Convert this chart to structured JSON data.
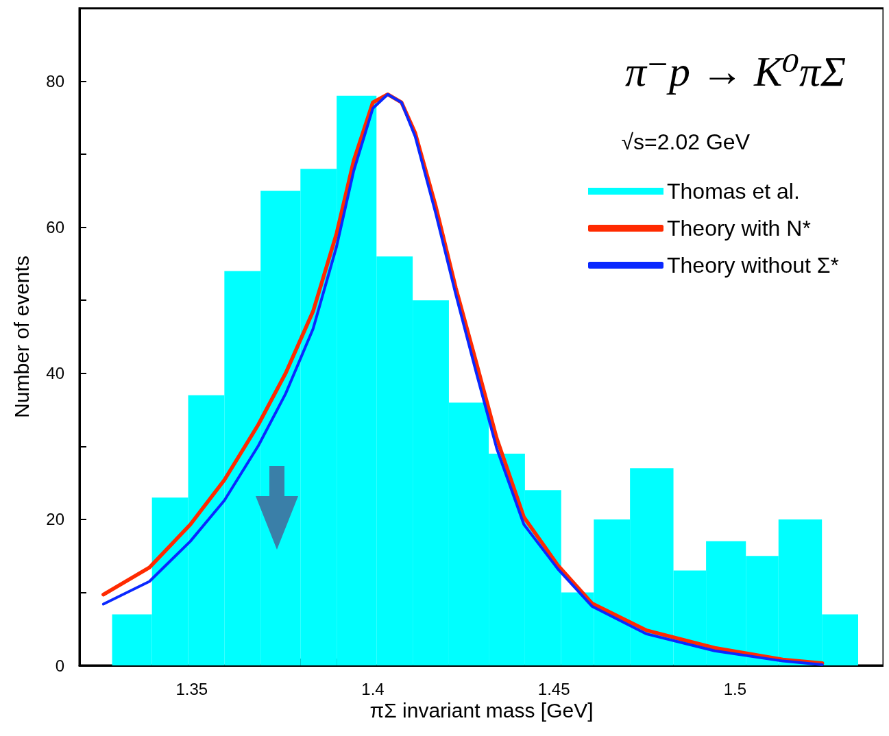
{
  "chart_data": {
    "type": "histogram",
    "title": "π⁻p → K⁰πΣ",
    "subtitle": "√s=2.02 GeV",
    "xlabel": "πΣ invariant mass [GeV]",
    "ylabel": "Number of events",
    "bins": [
      1.328,
      1.339,
      1.349,
      1.359,
      1.369,
      1.38,
      1.39,
      1.401,
      1.411,
      1.421,
      1.432,
      1.442,
      1.452,
      1.461,
      1.471,
      1.483,
      1.492,
      1.503,
      1.512,
      1.524,
      1.534
    ],
    "series": [
      {
        "name": "Thomas et al.",
        "color": "#00ffff",
        "values": [
          7,
          23,
          37,
          54,
          65,
          68,
          78,
          56,
          50,
          36,
          29,
          24,
          10,
          20,
          27,
          13,
          17,
          15,
          20,
          7
        ]
      },
      {
        "name": "Theory with N*",
        "type": "line",
        "color": "#ff2a00",
        "x": [
          1.3256,
          1.3383,
          1.3496,
          1.359,
          1.3684,
          1.3759,
          1.3835,
          1.39,
          1.3947,
          1.4,
          1.4041,
          1.4079,
          1.4117,
          1.4173,
          1.4229,
          1.4286,
          1.4342,
          1.4417,
          1.4511,
          1.4605,
          1.4756,
          1.4944,
          1.5132,
          1.5241
        ],
        "values": [
          9.7,
          13.4,
          19.3,
          25.4,
          33,
          40,
          48.5,
          59.2,
          69.1,
          77.1,
          78.2,
          77.1,
          72.9,
          63,
          51.7,
          41.4,
          31.1,
          20.3,
          13.7,
          8.5,
          4.8,
          2.4,
          0.8,
          0.3
        ]
      },
      {
        "name": "Theory without Σ*",
        "type": "line",
        "color": "#0a28ff",
        "x": [
          1.3256,
          1.3383,
          1.3496,
          1.359,
          1.3684,
          1.3759,
          1.3835,
          1.39,
          1.3947,
          1.4,
          1.4041,
          1.4079,
          1.4117,
          1.4173,
          1.4229,
          1.4286,
          1.4342,
          1.4417,
          1.4511,
          1.4605,
          1.4756,
          1.4944,
          1.5132,
          1.5241
        ],
        "values": [
          8.4,
          11.5,
          17,
          22.6,
          30.1,
          37.2,
          46.1,
          57.4,
          67.7,
          76.3,
          78.2,
          77.1,
          72.4,
          62,
          50.8,
          40,
          29.7,
          19.3,
          13.2,
          8.1,
          4.3,
          2,
          0.6,
          0.1
        ]
      }
    ],
    "xlim": [
      1.319,
      1.541
    ],
    "ylim": [
      0,
      90
    ],
    "xticks": [
      {
        "value": 1.33,
        "label": null
      },
      {
        "value": 1.34,
        "label": null
      },
      1.35,
      {
        "value": 1.36,
        "label": null
      },
      {
        "value": 1.37,
        "label": null
      },
      {
        "value": 1.38,
        "label": null
      },
      {
        "value": 1.39,
        "label": null
      },
      1.4,
      {
        "value": 1.41,
        "label": null
      },
      {
        "value": 1.42,
        "label": null
      },
      {
        "value": 1.43,
        "label": null
      },
      {
        "value": 1.44,
        "label": null
      },
      1.45,
      {
        "value": 1.46,
        "label": null
      },
      {
        "value": 1.47,
        "label": null
      },
      {
        "value": 1.48,
        "label": null
      },
      {
        "value": 1.49,
        "label": null
      },
      1.5,
      {
        "value": 1.51,
        "label": null
      },
      {
        "value": 1.52,
        "label": null
      },
      {
        "value": 1.53,
        "label": null
      }
    ],
    "yticks": [
      0,
      {
        "value": 10,
        "label": null
      },
      20,
      {
        "value": 30,
        "label": null
      },
      40,
      {
        "value": 50,
        "label": null
      },
      60,
      {
        "value": 70,
        "label": null
      },
      80,
      {
        "value": 90,
        "label": null
      }
    ],
    "line_style": "solid",
    "legend": "top right"
  }
}
